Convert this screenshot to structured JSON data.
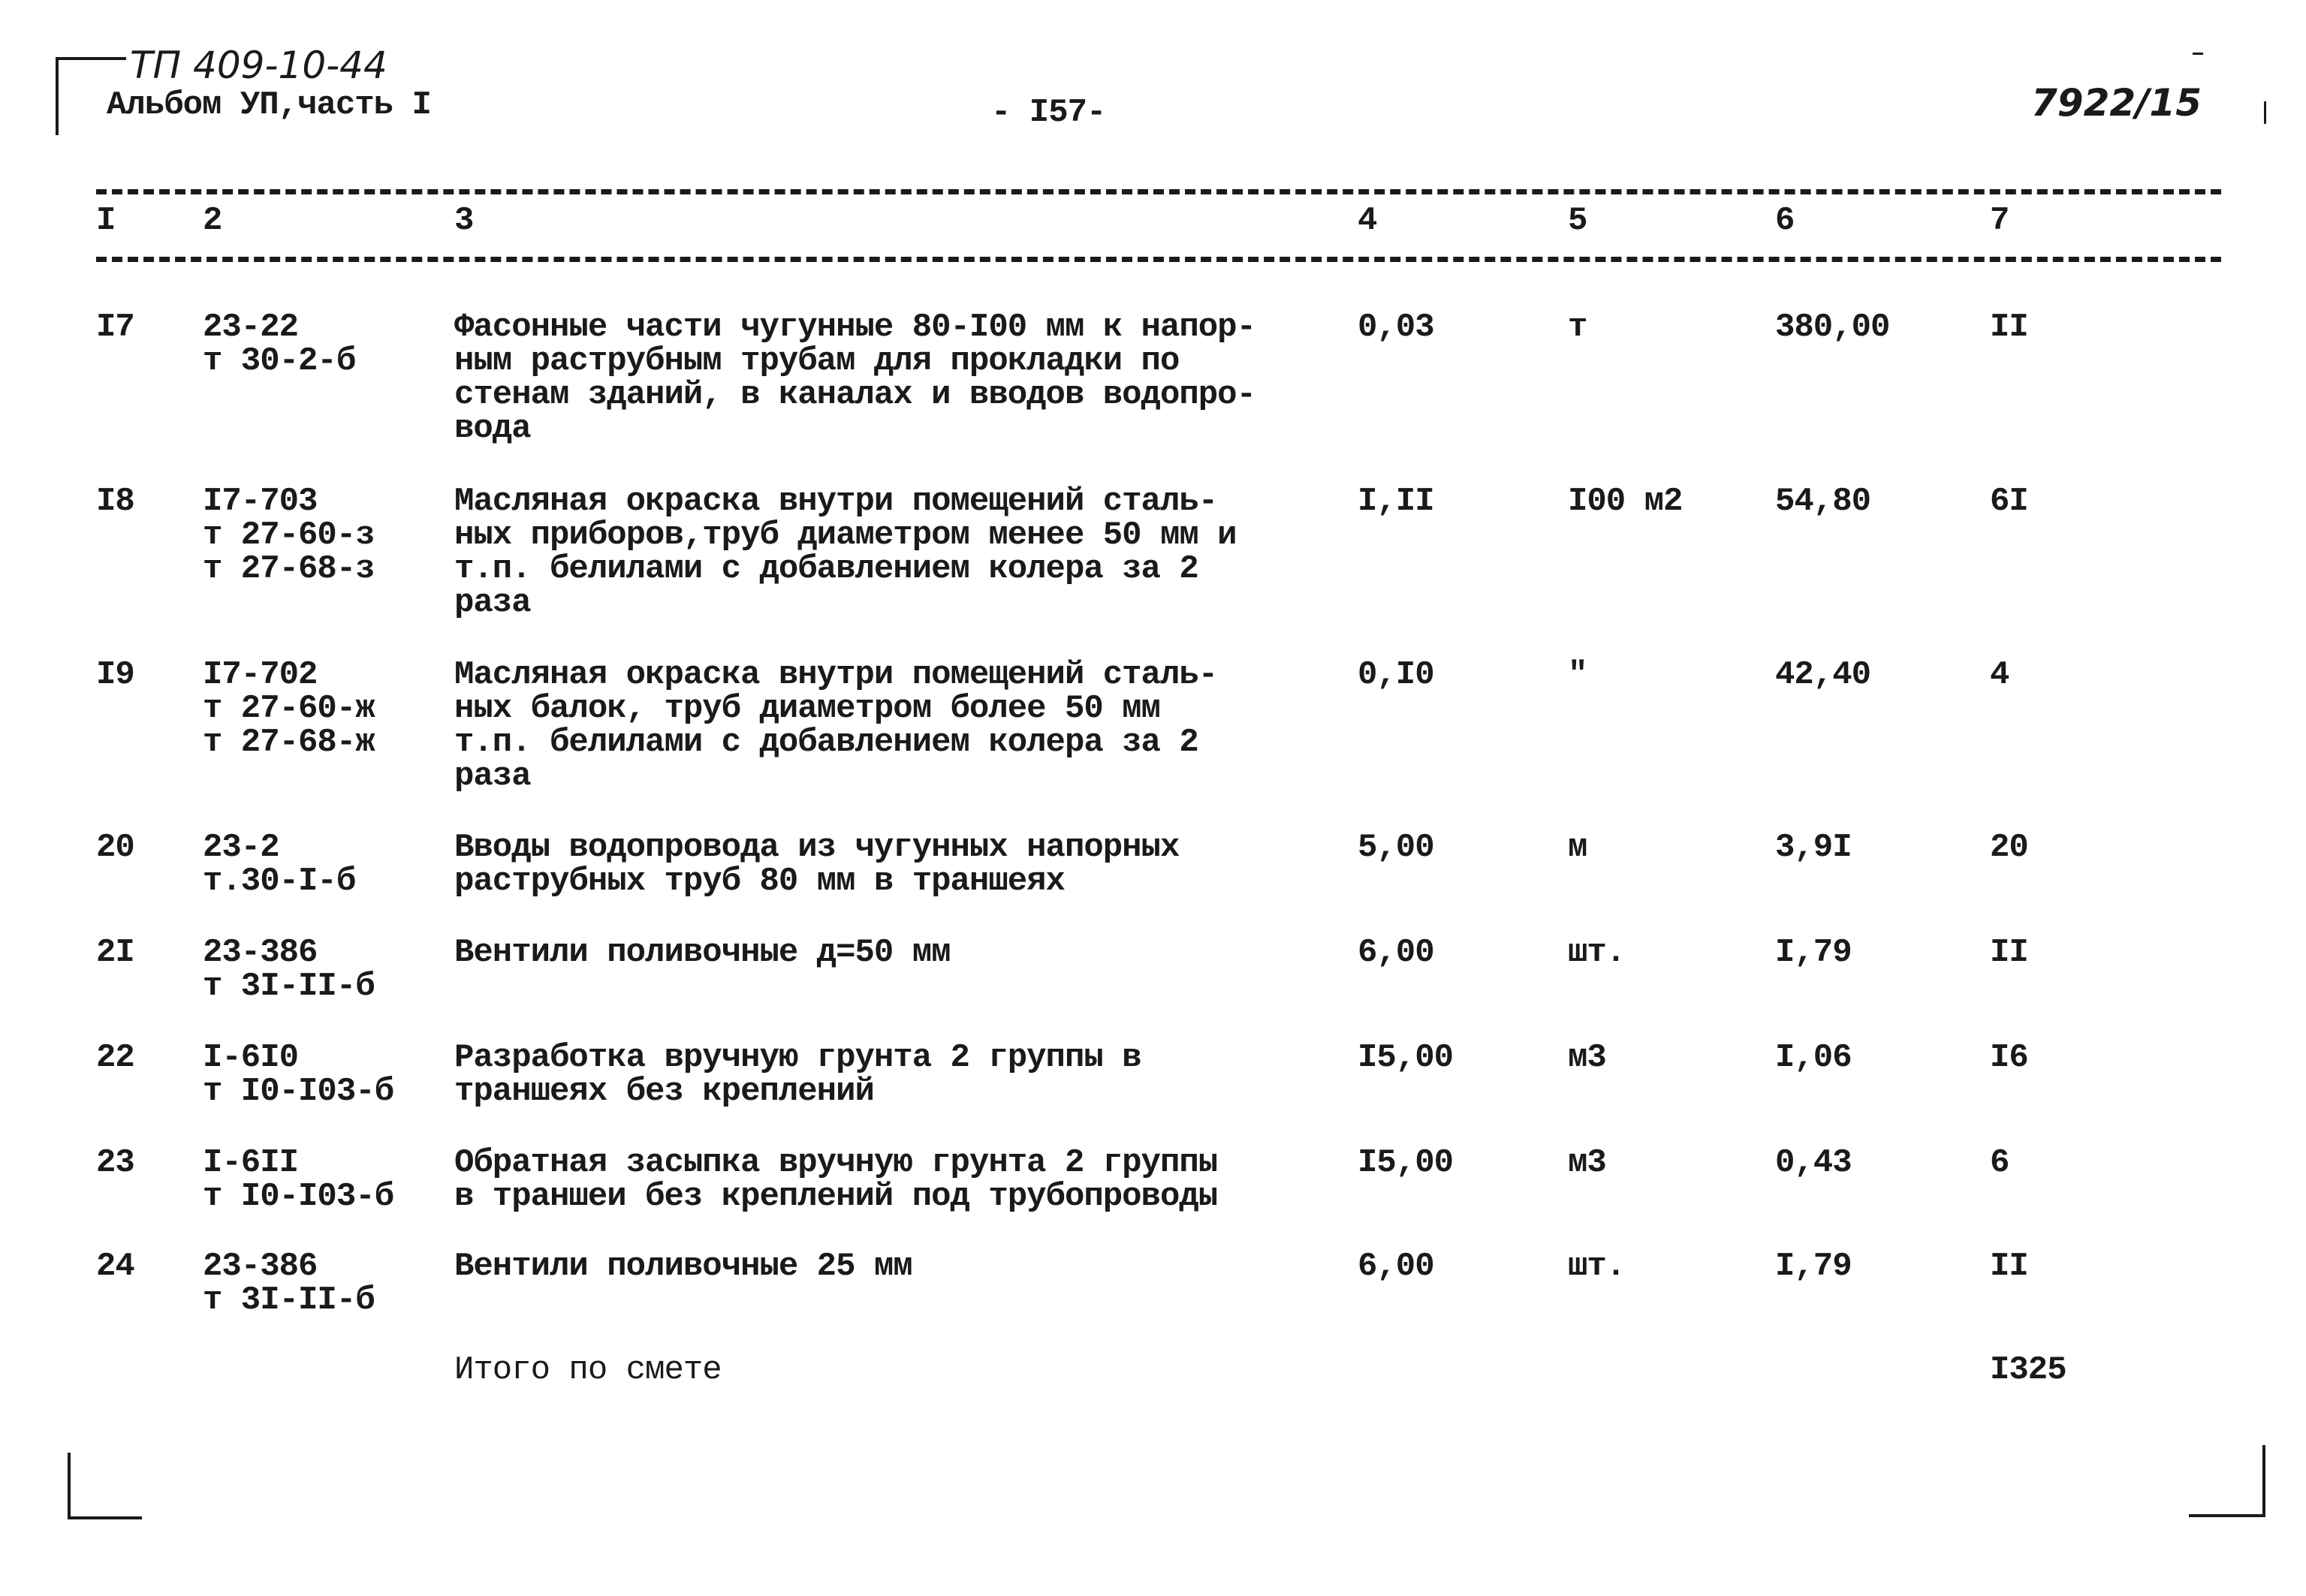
{
  "header": {
    "doc_code": "ТП 409-10-44",
    "album": "Альбом УП,часть I",
    "page_number": "- I57-",
    "sheet_code": "7922/15"
  },
  "table": {
    "column_numbers": [
      "I",
      "2",
      "3",
      "4",
      "5",
      "6",
      "7"
    ],
    "rows": [
      {
        "no": "I7",
        "code": "23-22\nт 30-2-б",
        "desc": "Фасонные части чугунные 80-I00 мм к напор-\nным раструбным трубам для прокладки по\nстенам зданий, в каналах и вводов водопро-\nвода",
        "qty": "0,03",
        "unit": "т",
        "price": "380,00",
        "total": "II"
      },
      {
        "no": "I8",
        "code": "I7-703\nт 27-60-з\nт 27-68-з",
        "desc": "Масляная окраска внутри помещений сталь-\nных приборов,труб диаметром менее 50 мм и\nт.п. белилами с добавлением колера за 2\nраза",
        "qty": "I,II",
        "unit": "I00 м2",
        "price": "54,80",
        "total": "6I"
      },
      {
        "no": "I9",
        "code": "I7-702\nт 27-60-ж\nт 27-68-ж",
        "desc": "Масляная окраска внутри помещений сталь-\nных балок, труб диаметром более 50 мм\nт.п. белилами с добавлением колера за 2\nраза",
        "qty": "0,I0",
        "unit": "\"",
        "price": "42,40",
        "total": "4"
      },
      {
        "no": "20",
        "code": "23-2\nт.30-I-б",
        "desc": "Вводы водопровода из чугунных напорных\nраструбных труб 80 мм в траншеях",
        "qty": "5,00",
        "unit": "м",
        "price": "3,9I",
        "total": "20"
      },
      {
        "no": "2I",
        "code": "23-386\nт 3I-II-б",
        "desc": "Вентили поливочные д=50 мм",
        "qty": "6,00",
        "unit": "шт.",
        "price": "I,79",
        "total": "II"
      },
      {
        "no": "22",
        "code": "I-6I0\nт I0-I03-б",
        "desc": "Разработка вручную грунта 2 группы в\nтраншеях без креплений",
        "qty": "I5,00",
        "unit": "м3",
        "price": "I,06",
        "total": "I6"
      },
      {
        "no": "23",
        "code": "I-6II\nт I0-I03-б",
        "desc": "Обратная засыпка вручную грунта 2 группы\nв траншеи без креплений под трубопроводы",
        "qty": "I5,00",
        "unit": "м3",
        "price": "0,43",
        "total": "6"
      },
      {
        "no": "24",
        "code": "23-386\nт 3I-II-б",
        "desc": "Вентили поливочные 25 мм",
        "qty": "6,00",
        "unit": "шт.",
        "price": "I,79",
        "total": "II"
      }
    ],
    "total_label": "Итого по смете",
    "total_value": "I325"
  }
}
